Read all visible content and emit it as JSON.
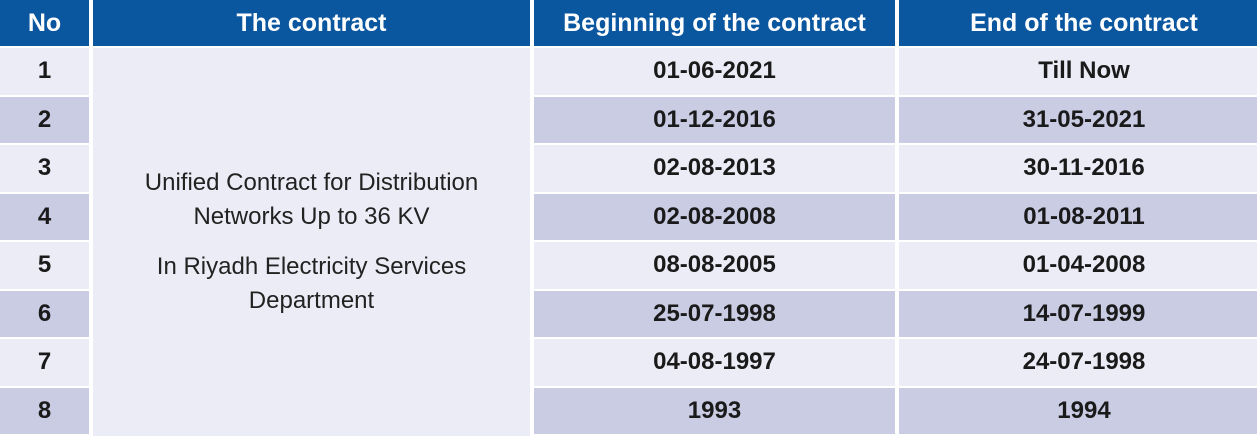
{
  "headers": {
    "no": "No",
    "contract": "The contract",
    "beginning": "Beginning of the contract",
    "end": "End of the contract"
  },
  "contract_description": {
    "line1": "Unified Contract for Distribution",
    "line2": "Networks Up to 36 KV",
    "line3": "In Riyadh Electricity Services",
    "line4": "Department"
  },
  "rows": [
    {
      "no": "1",
      "beginning": "01-06-2021",
      "end": "Till Now"
    },
    {
      "no": "2",
      "beginning": "01-12-2016",
      "end": "31-05-2021"
    },
    {
      "no": "3",
      "beginning": "02-08-2013",
      "end": "30-11-2016"
    },
    {
      "no": "4",
      "beginning": "02-08-2008",
      "end": "01-08-2011"
    },
    {
      "no": "5",
      "beginning": "08-08-2005",
      "end": "01-04-2008"
    },
    {
      "no": "6",
      "beginning": "25-07-1998",
      "end": "14-07-1999"
    },
    {
      "no": "7",
      "beginning": "04-08-1997",
      "end": "24-07-1998"
    },
    {
      "no": "8",
      "beginning": "1993",
      "end": "1994"
    }
  ],
  "colors": {
    "header_bg": "#0a569f",
    "row_light": "#ececf6",
    "row_dark": "#c9cce3"
  }
}
